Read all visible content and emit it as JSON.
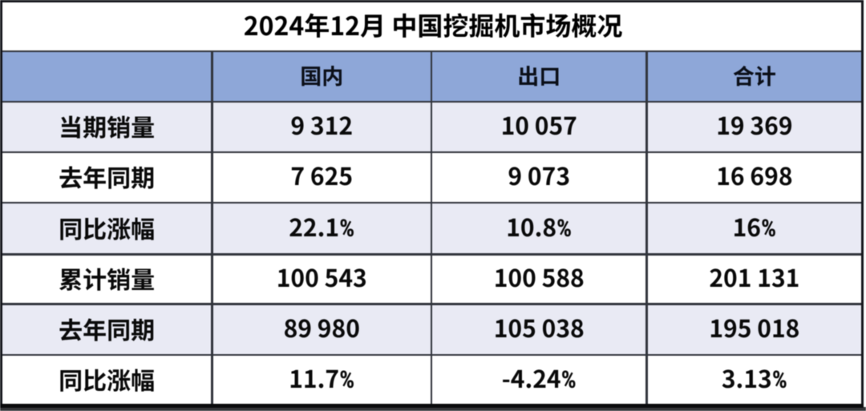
{
  "title": "2024年12月 中国挖掘机市场概况",
  "chart_data": {
    "type": "table",
    "title": "2024年12月 中国挖掘机市场概况",
    "columns": [
      "国内",
      "出口",
      "合计"
    ],
    "row_labels": [
      "当期销量",
      "去年同期",
      "同比涨幅",
      "累计销量",
      "去年同期",
      "同比涨幅"
    ],
    "series": [
      {
        "name": "国内",
        "values": [
          9312,
          7625,
          "22.1%",
          100543,
          89980,
          "11.7%"
        ]
      },
      {
        "name": "出口",
        "values": [
          10057,
          9073,
          "10.8%",
          100588,
          105038,
          "-4.24%"
        ]
      },
      {
        "name": "合计",
        "values": [
          19369,
          16698,
          "16%",
          201131,
          195018,
          "3.13%"
        ]
      }
    ]
  },
  "table": {
    "columns": [
      "国内",
      "出口",
      "合计"
    ],
    "rows": [
      {
        "label": "当期销量",
        "values": [
          "9 312",
          "10 057",
          "19 369"
        ]
      },
      {
        "label": "去年同期",
        "values": [
          "7 625",
          "9 073",
          "16 698"
        ]
      },
      {
        "label": "同比涨幅",
        "values": [
          "22.1%",
          "10.8%",
          "16%"
        ]
      },
      {
        "label": "累计销量",
        "values": [
          "100 543",
          "100 588",
          "201 131"
        ]
      },
      {
        "label": "去年同期",
        "values": [
          "89 980",
          "105 038",
          "195 018"
        ]
      },
      {
        "label": "同比涨幅",
        "values": [
          "11.7%",
          "-4.24%",
          "3.13%"
        ]
      }
    ]
  },
  "colors": {
    "header_bg": "#8EA7D8",
    "row_alt_bg": "#E9EAF4",
    "row_bg": "#FFFFFF",
    "border": "#31343C",
    "outer_border": "#0C0D11",
    "bottom_strip": "#37383B",
    "text": "#0A0A0A"
  }
}
